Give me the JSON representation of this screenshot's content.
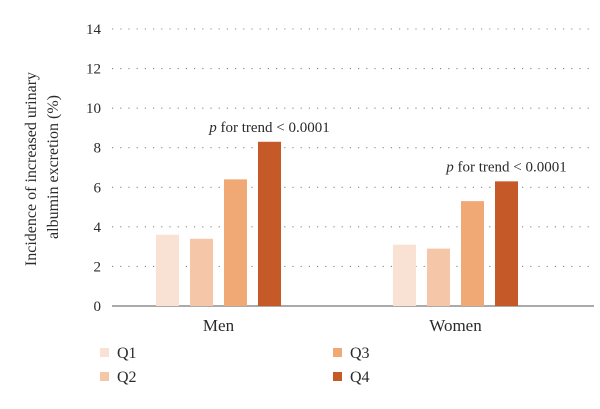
{
  "chart_data": {
    "type": "bar",
    "categories": [
      "Men",
      "Women"
    ],
    "series": [
      {
        "name": "Q1",
        "values": [
          3.6,
          3.1
        ],
        "color": "#f9e1d3"
      },
      {
        "name": "Q2",
        "values": [
          3.4,
          2.9
        ],
        "color": "#f5c6a8"
      },
      {
        "name": "Q3",
        "values": [
          6.4,
          5.3
        ],
        "color": "#f0a875"
      },
      {
        "name": "Q4",
        "values": [
          8.3,
          6.3
        ],
        "color": "#c55a28"
      }
    ],
    "ylabel_lines": [
      "Incidence of increased urinary",
      "albumin excretion (%)"
    ],
    "ylim": [
      0,
      14
    ],
    "yticks": [
      0,
      2,
      4,
      6,
      8,
      10,
      12,
      14
    ],
    "grid": true,
    "legend_position": "bottom-left",
    "annotations": [
      {
        "category": "Men",
        "italic": "p",
        "text": " for trend < 0.0001"
      },
      {
        "category": "Women",
        "italic": "p",
        "text": " for trend < 0.0001"
      }
    ]
  }
}
